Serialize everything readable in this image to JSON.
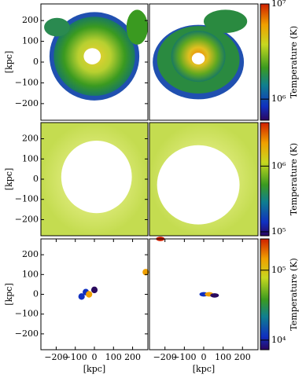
{
  "chart_data": [
    {
      "type": "image",
      "ylim": [
        -280,
        280
      ],
      "ylabel": "[kpc]",
      "yticks": [
        {
          "value": 200,
          "label": "200"
        },
        {
          "value": 100,
          "label": "100"
        },
        {
          "value": 0,
          "label": "0"
        },
        {
          "value": -100,
          "label": "−100"
        },
        {
          "value": -200,
          "label": "−200"
        }
      ]
    },
    {
      "type": "image",
      "colorbar": {
        "label": "Temperature (K)",
        "log": true,
        "lim": [
          600000,
          10000000
        ],
        "ticks": [
          {
            "value": 1000000,
            "label": "10⁶"
          },
          {
            "value": 10000000,
            "label": "10⁷"
          }
        ]
      }
    },
    {
      "type": "image",
      "ylim": [
        -280,
        280
      ],
      "ylabel": "[kpc]",
      "yticks": [
        {
          "value": 200,
          "label": "200"
        },
        {
          "value": 100,
          "label": "100"
        },
        {
          "value": 0,
          "label": "0"
        },
        {
          "value": -100,
          "label": "−100"
        },
        {
          "value": -200,
          "label": "−200"
        }
      ]
    },
    {
      "type": "image",
      "colorbar": {
        "label": "Temperature (K)",
        "log": true,
        "lim": [
          87000,
          4600000
        ],
        "ticks": [
          {
            "value": 100000,
            "label": "10⁵"
          },
          {
            "value": 1000000,
            "label": "10⁶"
          }
        ]
      }
    },
    {
      "type": "image",
      "ylim": [
        -280,
        280
      ],
      "ylabel": "[kpc]",
      "xlim": [
        -280,
        280
      ],
      "xlabel": "[kpc]",
      "yticks": [
        {
          "value": 200,
          "label": "200"
        },
        {
          "value": 100,
          "label": "100"
        },
        {
          "value": 0,
          "label": "0"
        },
        {
          "value": -100,
          "label": "−100"
        },
        {
          "value": -200,
          "label": "−200"
        }
      ],
      "xticks": [
        {
          "value": -200,
          "label": "−200"
        },
        {
          "value": -100,
          "label": "−100"
        },
        {
          "value": 0,
          "label": "0"
        },
        {
          "value": 100,
          "label": "100"
        },
        {
          "value": 200,
          "label": "200"
        }
      ]
    },
    {
      "type": "image",
      "xlim": [
        -280,
        280
      ],
      "xlabel": "[kpc]",
      "xticks": [
        {
          "value": -200,
          "label": "−200"
        },
        {
          "value": -100,
          "label": "−100"
        },
        {
          "value": 0,
          "label": "0"
        },
        {
          "value": 100,
          "label": "100"
        },
        {
          "value": 200,
          "label": "200"
        }
      ],
      "colorbar": {
        "label": "Temperature (K)",
        "log": true,
        "lim": [
          7300,
          280000
        ],
        "ticks": [
          {
            "value": 10000,
            "label": "10⁴"
          },
          {
            "value": 100000,
            "label": "10⁵"
          }
        ]
      }
    }
  ]
}
